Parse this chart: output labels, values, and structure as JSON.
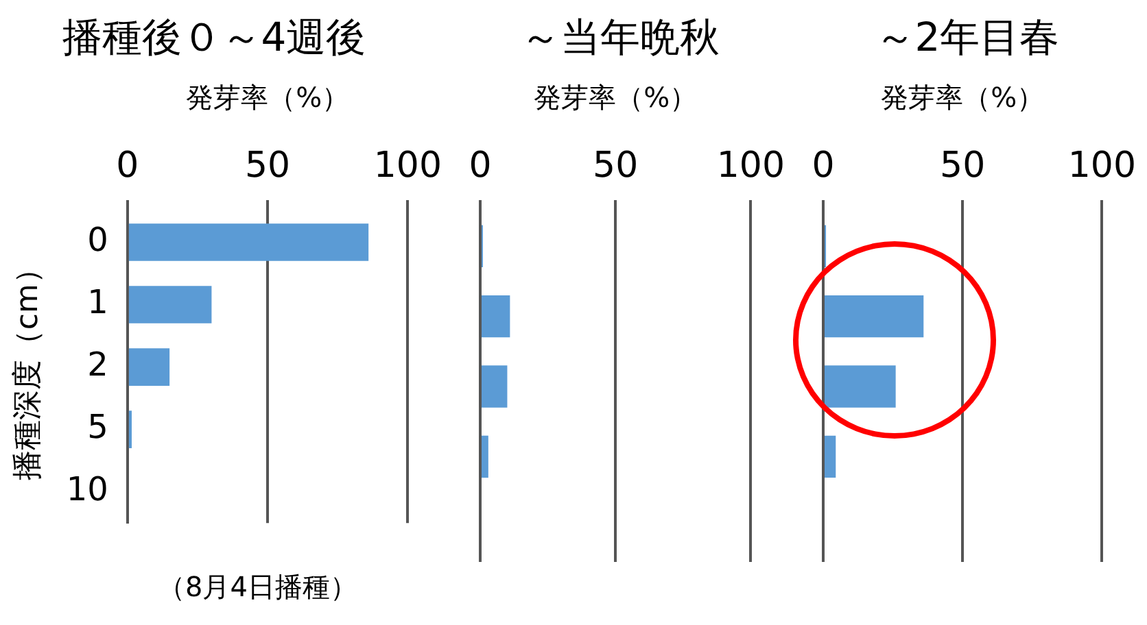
{
  "chart_data": [
    {
      "type": "bar",
      "title": "播種後０～4週後",
      "xlabel": "発芽率（%）",
      "ylabel": "播種深度（cm）",
      "orientation": "horizontal",
      "categories": [
        "0",
        "1",
        "2",
        "5",
        "10"
      ],
      "values": [
        86,
        30,
        15,
        1.5,
        0
      ],
      "color": "#5b9bd5",
      "xlim": [
        0,
        100
      ],
      "xticks": [
        0,
        50,
        100
      ],
      "grid": "x",
      "annotations": [
        "（8月4日播種）"
      ]
    },
    {
      "type": "bar",
      "title": "～当年晩秋",
      "xlabel": "発芽率（%）",
      "orientation": "horizontal",
      "categories": [
        "0",
        "1",
        "2",
        "5",
        "10"
      ],
      "values": [
        1,
        11,
        10,
        3,
        0
      ],
      "color": "#5b9bd5",
      "xlim": [
        0,
        100
      ],
      "xticks": [
        0,
        50,
        100
      ],
      "grid": "x",
      "tick_labels": "x"
    },
    {
      "type": "bar",
      "title": "～2年目春",
      "xlabel": "発芽率（%）",
      "orientation": "horizontal",
      "categories": [
        "0",
        "1",
        "2",
        "5",
        "10"
      ],
      "values": [
        1,
        36,
        26,
        4.5,
        0
      ],
      "color": "#5b9bd5",
      "xlim": [
        0,
        100
      ],
      "xticks": [
        0,
        50,
        100
      ],
      "grid": "x",
      "tick_labels": "x"
    }
  ]
}
